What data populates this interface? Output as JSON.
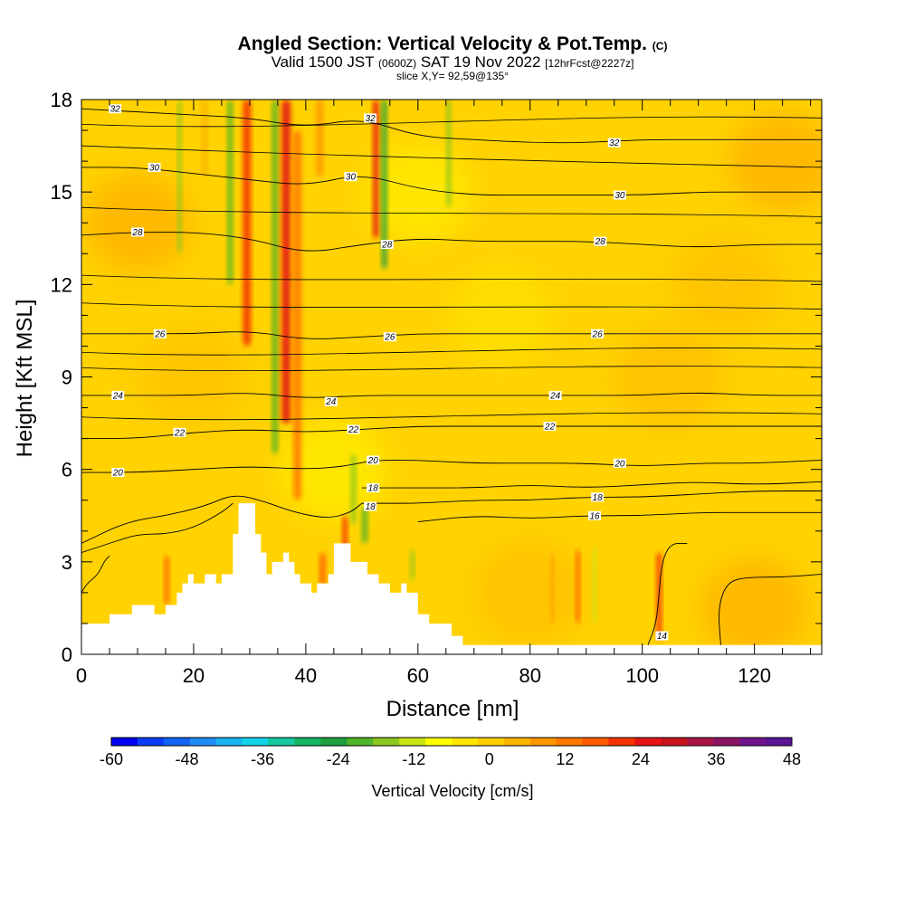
{
  "title": {
    "main": "Angled Section: Vertical Velocity & Pot.Temp.",
    "suffix": "(C)"
  },
  "subtitle": {
    "part1": "Valid 1500 JST",
    "part2": "(0600Z)",
    "part3": "SAT 19 Nov 2022",
    "part4": "[12hrFcst@2227z]"
  },
  "slice_label": "slice X,Y= 92,59@135°",
  "chart_data": {
    "type": "heatmap",
    "xlabel": "Distance [nm]",
    "ylabel": "Height [Kft MSL]",
    "xlim": [
      0,
      132
    ],
    "ylim": [
      0,
      18
    ],
    "x_ticks": [
      0,
      20,
      40,
      60,
      80,
      100,
      120
    ],
    "y_ticks": [
      0,
      3,
      6,
      9,
      12,
      15,
      18
    ],
    "colorbar": {
      "label": "Vertical Velocity [cm/s]",
      "range": [
        -60,
        48
      ],
      "ticks": [
        -60,
        -48,
        -36,
        -24,
        -12,
        0,
        12,
        24,
        36,
        48
      ],
      "colors": [
        "#0000f0",
        "#0a3cf5",
        "#1464f5",
        "#1e8cf5",
        "#19b4f0",
        "#14d2e6",
        "#14c8a0",
        "#14b464",
        "#1ea03c",
        "#50b428",
        "#8cc81e",
        "#c8e614",
        "#ffff00",
        "#ffe600",
        "#ffcd00",
        "#ffb400",
        "#ff9600",
        "#ff7800",
        "#ff5a00",
        "#f53200",
        "#e61414",
        "#c8141e",
        "#aa1446",
        "#8c1464",
        "#6e148c",
        "#5a1496"
      ]
    },
    "background_value": "0 to 6 cm/s (yellow-orange)",
    "updraft_columns_x": [
      15,
      29,
      36,
      38,
      47,
      52,
      66,
      88,
      103
    ],
    "downdraft_columns_x": [
      17,
      26,
      35,
      53,
      65,
      91
    ],
    "terrain_profile": {
      "x": [
        0,
        5,
        5,
        9,
        9,
        13,
        13,
        15,
        15,
        17,
        17,
        18,
        18,
        19,
        19,
        20,
        20,
        22,
        22,
        24,
        24,
        25,
        25,
        27,
        27,
        28,
        28,
        31,
        31,
        32,
        32,
        33,
        33,
        34,
        34,
        36,
        36,
        37,
        37,
        38,
        38,
        39,
        39,
        41,
        41,
        42,
        42,
        44,
        44,
        45,
        45,
        48,
        48,
        51,
        51,
        53,
        53,
        55,
        55,
        57,
        57,
        58,
        58,
        60,
        60,
        62,
        62,
        66,
        66,
        68,
        68,
        71,
        71,
        132
      ],
      "y": [
        1.0,
        1.0,
        1.3,
        1.3,
        1.6,
        1.6,
        1.3,
        1.3,
        1.6,
        1.6,
        2.0,
        2.0,
        2.3,
        2.3,
        2.6,
        2.6,
        2.3,
        2.3,
        2.6,
        2.6,
        2.3,
        2.3,
        2.6,
        2.6,
        3.9,
        3.9,
        4.9,
        4.9,
        3.9,
        3.9,
        3.3,
        3.3,
        2.6,
        2.6,
        3.0,
        3.0,
        3.3,
        3.3,
        3.0,
        3.0,
        2.6,
        2.6,
        2.3,
        2.3,
        2.0,
        2.0,
        2.3,
        2.3,
        2.6,
        2.6,
        3.6,
        3.6,
        3.0,
        3.0,
        2.6,
        2.6,
        2.3,
        2.3,
        2.0,
        2.0,
        2.3,
        2.3,
        2.0,
        2.0,
        1.3,
        1.3,
        1.0,
        1.0,
        0.6,
        0.6,
        0.3,
        0.3,
        0.3,
        0.3
      ]
    },
    "theta_contours": [
      {
        "value": 14,
        "label": "14",
        "points": [
          [
            101,
            0.3
          ],
          [
            102.5,
            1.0
          ],
          [
            103,
            2.0
          ],
          [
            103.5,
            3.0
          ],
          [
            105,
            3.6
          ],
          [
            108,
            3.6
          ]
        ]
      },
      {
        "value": 14,
        "label": "",
        "points": [
          [
            0,
            2.0
          ],
          [
            1,
            2.3
          ],
          [
            3,
            2.6
          ],
          [
            4,
            3.0
          ],
          [
            5,
            3.2
          ]
        ]
      },
      {
        "value": 14,
        "label": "",
        "points": [
          [
            114,
            0.3
          ],
          [
            113.5,
            1.5
          ],
          [
            115,
            2.3
          ],
          [
            118,
            2.5
          ],
          [
            125,
            2.5
          ],
          [
            132,
            2.6
          ]
        ]
      },
      {
        "value": 16,
        "label": "16",
        "points": [
          [
            60,
            4.3
          ],
          [
            70,
            4.5
          ],
          [
            80,
            4.4
          ],
          [
            90,
            4.5
          ],
          [
            100,
            4.5
          ],
          [
            110,
            4.6
          ],
          [
            120,
            4.6
          ],
          [
            132,
            4.6
          ]
        ]
      },
      {
        "value": 16,
        "label": "",
        "points": [
          [
            0,
            3.3
          ],
          [
            5,
            3.6
          ],
          [
            10,
            3.9
          ],
          [
            15,
            3.9
          ],
          [
            20,
            4.1
          ],
          [
            25,
            4.6
          ],
          [
            27,
            4.9
          ]
        ]
      },
      {
        "value": 18,
        "label": "18",
        "points": [
          [
            50,
            4.9
          ],
          [
            55,
            4.9
          ],
          [
            60,
            4.9
          ],
          [
            70,
            5.0
          ],
          [
            80,
            5.0
          ],
          [
            90,
            5.1
          ],
          [
            100,
            5.1
          ],
          [
            110,
            5.2
          ],
          [
            120,
            5.3
          ],
          [
            132,
            5.3
          ]
        ]
      },
      {
        "value": 18,
        "label": "",
        "points": [
          [
            0,
            3.6
          ],
          [
            8,
            4.3
          ],
          [
            15,
            4.5
          ],
          [
            22,
            4.8
          ],
          [
            27,
            5.2
          ],
          [
            32,
            5.0
          ],
          [
            38,
            4.6
          ],
          [
            44,
            4.4
          ],
          [
            48,
            4.6
          ],
          [
            50,
            4.9
          ]
        ]
      },
      {
        "value": 18,
        "label": "18",
        "points": [
          [
            50,
            5.4
          ],
          [
            60,
            5.4
          ],
          [
            70,
            5.4
          ],
          [
            80,
            5.5
          ],
          [
            90,
            5.4
          ],
          [
            100,
            5.5
          ],
          [
            110,
            5.6
          ],
          [
            120,
            5.5
          ],
          [
            132,
            5.6
          ]
        ]
      },
      {
        "value": 20,
        "label": "20",
        "points": [
          [
            0,
            5.9
          ],
          [
            10,
            5.9
          ],
          [
            20,
            6.0
          ],
          [
            30,
            6.1
          ],
          [
            40,
            6.0
          ],
          [
            47,
            6.1
          ],
          [
            52,
            6.3
          ],
          [
            60,
            6.3
          ],
          [
            70,
            6.2
          ],
          [
            80,
            6.2
          ],
          [
            90,
            6.2
          ],
          [
            100,
            6.1
          ],
          [
            110,
            6.2
          ],
          [
            120,
            6.2
          ],
          [
            132,
            6.3
          ]
        ]
      },
      {
        "value": 22,
        "label": "22",
        "points": [
          [
            0,
            7.0
          ],
          [
            10,
            7.0
          ],
          [
            20,
            7.2
          ],
          [
            30,
            7.3
          ],
          [
            40,
            7.2
          ],
          [
            50,
            7.3
          ],
          [
            60,
            7.4
          ],
          [
            70,
            7.4
          ],
          [
            80,
            7.4
          ],
          [
            90,
            7.4
          ],
          [
            100,
            7.4
          ],
          [
            110,
            7.4
          ],
          [
            120,
            7.4
          ],
          [
            132,
            7.4
          ]
        ]
      },
      {
        "value": 24,
        "label": "24",
        "points": [
          [
            0,
            8.4
          ],
          [
            10,
            8.4
          ],
          [
            20,
            8.4
          ],
          [
            30,
            8.5
          ],
          [
            40,
            8.3
          ],
          [
            50,
            8.4
          ],
          [
            60,
            8.4
          ],
          [
            70,
            8.4
          ],
          [
            80,
            8.4
          ],
          [
            90,
            8.4
          ],
          [
            100,
            8.4
          ],
          [
            110,
            8.5
          ],
          [
            120,
            8.4
          ],
          [
            132,
            8.4
          ]
        ]
      },
      {
        "value": 26,
        "label": "26",
        "points": [
          [
            0,
            10.4
          ],
          [
            10,
            10.4
          ],
          [
            20,
            10.4
          ],
          [
            30,
            10.5
          ],
          [
            40,
            10.2
          ],
          [
            50,
            10.3
          ],
          [
            60,
            10.4
          ],
          [
            70,
            10.4
          ],
          [
            80,
            10.4
          ],
          [
            90,
            10.4
          ],
          [
            100,
            10.4
          ],
          [
            110,
            10.4
          ],
          [
            120,
            10.4
          ],
          [
            132,
            10.4
          ]
        ]
      },
      {
        "value": 28,
        "label": "28",
        "points": [
          [
            0,
            13.6
          ],
          [
            10,
            13.7
          ],
          [
            20,
            13.7
          ],
          [
            30,
            13.5
          ],
          [
            40,
            13.0
          ],
          [
            50,
            13.3
          ],
          [
            60,
            13.5
          ],
          [
            70,
            13.4
          ],
          [
            80,
            13.4
          ],
          [
            90,
            13.4
          ],
          [
            100,
            13.3
          ],
          [
            110,
            13.2
          ],
          [
            120,
            13.3
          ],
          [
            132,
            13.3
          ]
        ]
      },
      {
        "value": 30,
        "label": "30",
        "points": [
          [
            0,
            15.8
          ],
          [
            10,
            15.8
          ],
          [
            20,
            15.6
          ],
          [
            30,
            15.4
          ],
          [
            40,
            15.2
          ],
          [
            50,
            15.6
          ],
          [
            60,
            15.1
          ],
          [
            70,
            14.9
          ],
          [
            80,
            14.9
          ],
          [
            90,
            14.9
          ],
          [
            100,
            14.9
          ],
          [
            110,
            15.0
          ],
          [
            120,
            15.0
          ],
          [
            132,
            15.0
          ]
        ]
      },
      {
        "value": 32,
        "label": "32",
        "points": [
          [
            0,
            17.7
          ],
          [
            10,
            17.6
          ],
          [
            20,
            17.5
          ],
          [
            30,
            17.4
          ],
          [
            40,
            17.1
          ],
          [
            50,
            17.4
          ],
          [
            60,
            16.8
          ],
          [
            70,
            16.7
          ],
          [
            80,
            16.6
          ],
          [
            90,
            16.6
          ],
          [
            100,
            16.7
          ],
          [
            110,
            16.7
          ],
          [
            120,
            16.7
          ],
          [
            132,
            16.7
          ]
        ]
      }
    ],
    "contour_label_positions": [
      {
        "label": "32",
        "x": 6,
        "y": 17.7
      },
      {
        "label": "32",
        "x": 51.5,
        "y": 17.4
      },
      {
        "label": "32",
        "x": 95,
        "y": 16.6
      },
      {
        "label": "30",
        "x": 13,
        "y": 15.8
      },
      {
        "label": "30",
        "x": 48,
        "y": 15.5
      },
      {
        "label": "30",
        "x": 96,
        "y": 14.9
      },
      {
        "label": "28",
        "x": 10,
        "y": 13.7
      },
      {
        "label": "28",
        "x": 54.5,
        "y": 13.3
      },
      {
        "label": "28",
        "x": 92.5,
        "y": 13.4
      },
      {
        "label": "26",
        "x": 14,
        "y": 10.4
      },
      {
        "label": "26",
        "x": 55,
        "y": 10.3
      },
      {
        "label": "26",
        "x": 92,
        "y": 10.4
      },
      {
        "label": "24",
        "x": 6.5,
        "y": 8.4
      },
      {
        "label": "24",
        "x": 44.5,
        "y": 8.2
      },
      {
        "label": "24",
        "x": 84.5,
        "y": 8.4
      },
      {
        "label": "22",
        "x": 17.5,
        "y": 7.2
      },
      {
        "label": "22",
        "x": 48.5,
        "y": 7.3
      },
      {
        "label": "22",
        "x": 83.5,
        "y": 7.4
      },
      {
        "label": "20",
        "x": 6.5,
        "y": 5.9
      },
      {
        "label": "20",
        "x": 52,
        "y": 6.3
      },
      {
        "label": "20",
        "x": 96,
        "y": 6.2
      },
      {
        "label": "18",
        "x": 52,
        "y": 5.4
      },
      {
        "label": "18",
        "x": 92,
        "y": 5.1
      },
      {
        "label": "18",
        "x": 51.5,
        "y": 4.8
      },
      {
        "label": "16",
        "x": 91.5,
        "y": 4.5
      },
      {
        "label": "14",
        "x": 103.5,
        "y": 0.6
      }
    ]
  }
}
